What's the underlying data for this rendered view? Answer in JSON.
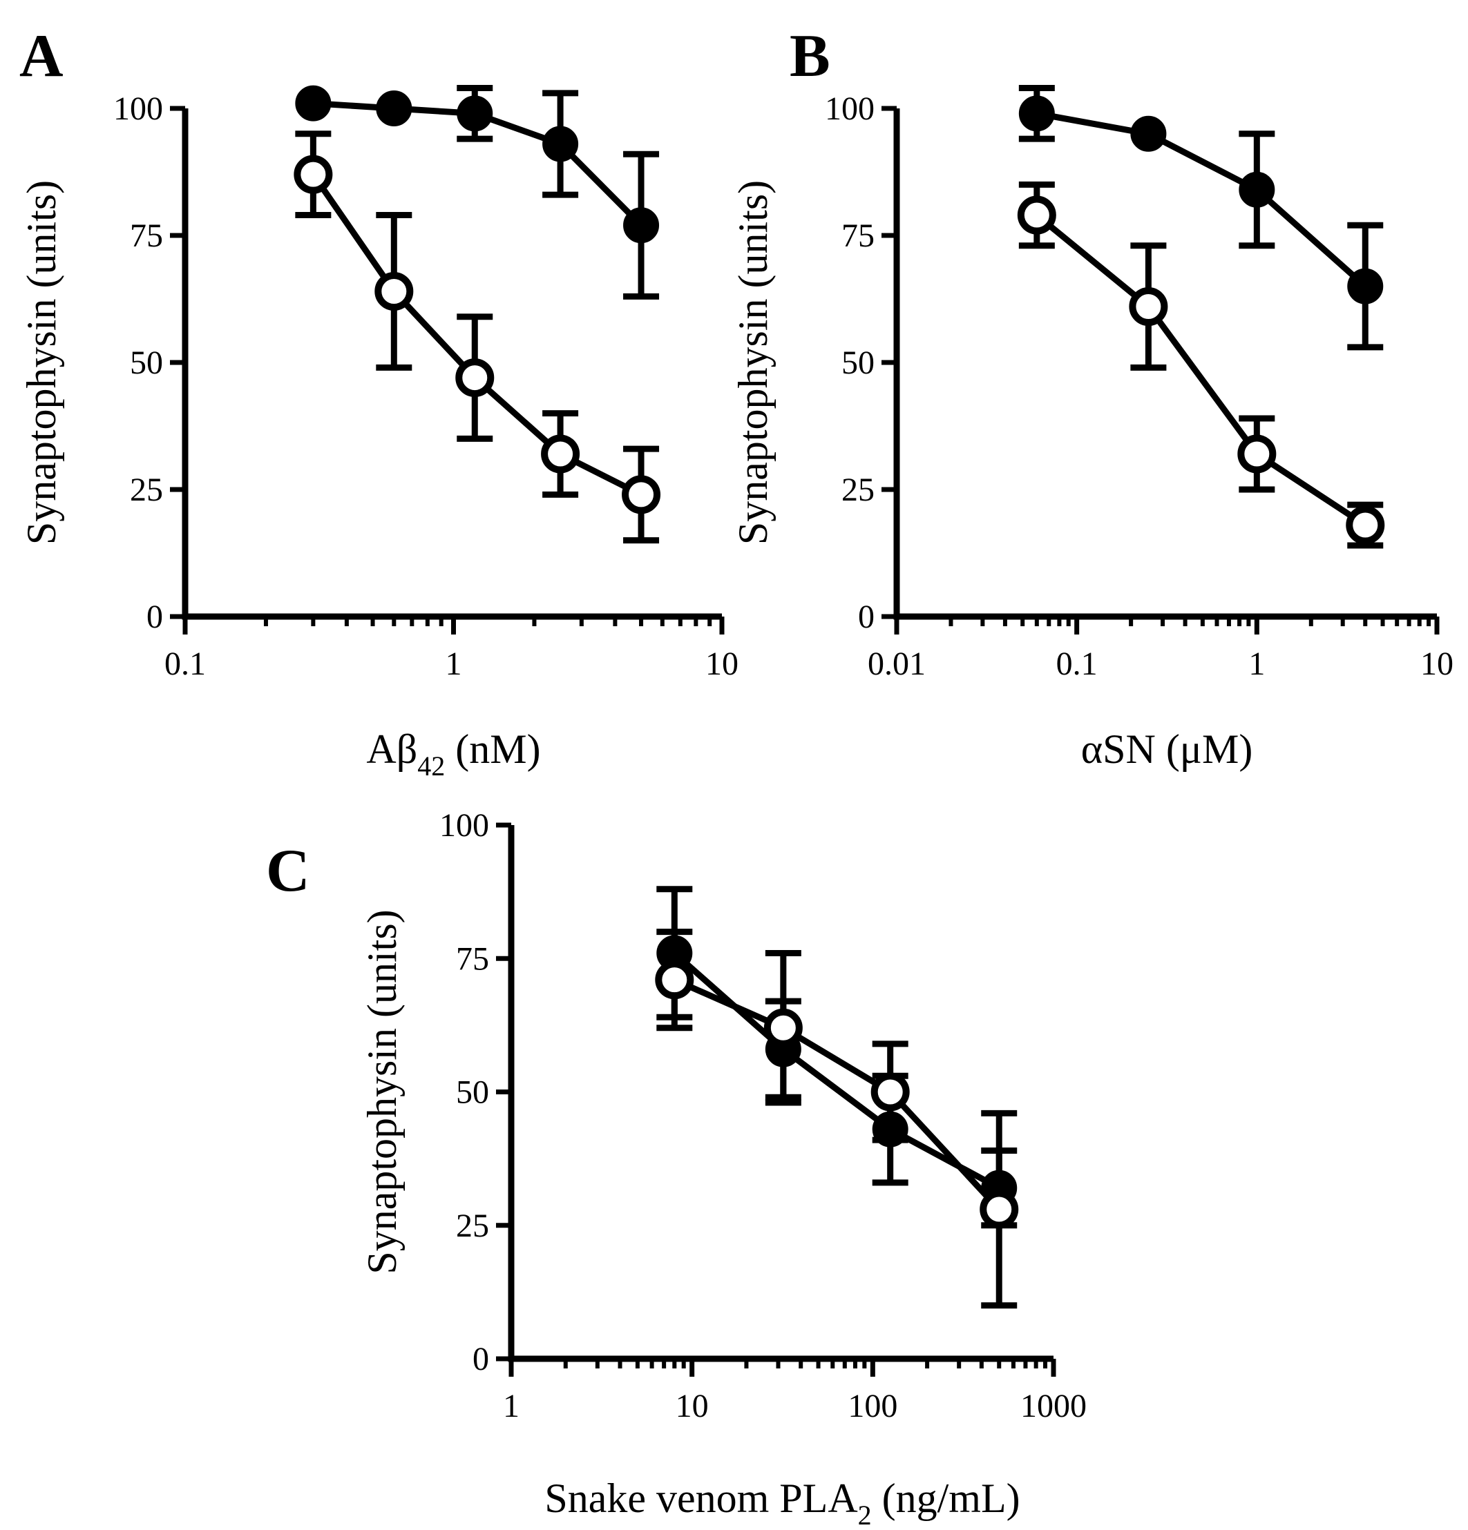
{
  "chart_data": [
    {
      "panel": "A",
      "type": "line",
      "x_scale": "log",
      "xlim": [
        0.1,
        10
      ],
      "ylim": [
        0,
        100
      ],
      "xticks": [
        {
          "value": 0.1,
          "label": "0.1"
        },
        {
          "value": 1,
          "label": "1"
        },
        {
          "value": 10,
          "label": "10"
        }
      ],
      "yticks": [
        {
          "value": 0,
          "label": "0"
        },
        {
          "value": 25,
          "label": "25"
        },
        {
          "value": 50,
          "label": "50"
        },
        {
          "value": 75,
          "label": "75"
        },
        {
          "value": 100,
          "label": "100"
        }
      ],
      "ylabel": "Synaptophysin (units)",
      "xlabel": {
        "pre": "Aβ",
        "sub": "42",
        "post": " (nM)"
      },
      "series": [
        {
          "name": "filled",
          "marker": "filled",
          "x": [
            0.3,
            0.6,
            1.2,
            2.5,
            5
          ],
          "y": [
            101,
            100,
            99,
            93,
            77
          ],
          "err": [
            0,
            0,
            5,
            10,
            14
          ]
        },
        {
          "name": "open",
          "marker": "open",
          "x": [
            0.3,
            0.6,
            1.2,
            2.5,
            5
          ],
          "y": [
            87,
            64,
            47,
            32,
            24
          ],
          "err": [
            8,
            15,
            12,
            8,
            9
          ]
        }
      ]
    },
    {
      "panel": "B",
      "type": "line",
      "x_scale": "log",
      "xlim": [
        0.01,
        10
      ],
      "ylim": [
        0,
        100
      ],
      "xticks": [
        {
          "value": 0.01,
          "label": "0.01"
        },
        {
          "value": 0.1,
          "label": "0.1"
        },
        {
          "value": 1,
          "label": "1"
        },
        {
          "value": 10,
          "label": "10"
        }
      ],
      "yticks": [
        {
          "value": 0,
          "label": "0"
        },
        {
          "value": 25,
          "label": "25"
        },
        {
          "value": 50,
          "label": "50"
        },
        {
          "value": 75,
          "label": "75"
        },
        {
          "value": 100,
          "label": "100"
        }
      ],
      "ylabel": "Synaptophysin (units)",
      "xlabel": {
        "pre": "αSN (μM)",
        "sub": "",
        "post": ""
      },
      "series": [
        {
          "name": "filled",
          "marker": "filled",
          "x": [
            0.06,
            0.25,
            1,
            4
          ],
          "y": [
            99,
            95,
            84,
            65
          ],
          "err": [
            5,
            0,
            11,
            12
          ]
        },
        {
          "name": "open",
          "marker": "open",
          "x": [
            0.06,
            0.25,
            1,
            4
          ],
          "y": [
            79,
            61,
            32,
            18
          ],
          "err": [
            6,
            12,
            7,
            4
          ]
        }
      ]
    },
    {
      "panel": "C",
      "type": "line",
      "x_scale": "log",
      "xlim": [
        1,
        1000
      ],
      "ylim": [
        0,
        100
      ],
      "xticks": [
        {
          "value": 1,
          "label": "1"
        },
        {
          "value": 10,
          "label": "10"
        },
        {
          "value": 100,
          "label": "100"
        },
        {
          "value": 1000,
          "label": "1000"
        }
      ],
      "yticks": [
        {
          "value": 0,
          "label": "0"
        },
        {
          "value": 25,
          "label": "25"
        },
        {
          "value": 50,
          "label": "50"
        },
        {
          "value": 75,
          "label": "75"
        },
        {
          "value": 100,
          "label": "100"
        }
      ],
      "ylabel": "Synaptophysin (units)",
      "xlabel": {
        "pre": "Snake venom PLA",
        "sub": "2",
        "post": " (ng/mL)"
      },
      "series": [
        {
          "name": "filled",
          "marker": "filled",
          "x": [
            8,
            32,
            125,
            500
          ],
          "y": [
            76,
            58,
            43,
            32
          ],
          "err": [
            12,
            9,
            10,
            7
          ]
        },
        {
          "name": "open",
          "marker": "open",
          "x": [
            8,
            32,
            125,
            500
          ],
          "y": [
            71,
            62,
            50,
            28
          ],
          "err": [
            9,
            14,
            9,
            18
          ]
        }
      ]
    }
  ]
}
